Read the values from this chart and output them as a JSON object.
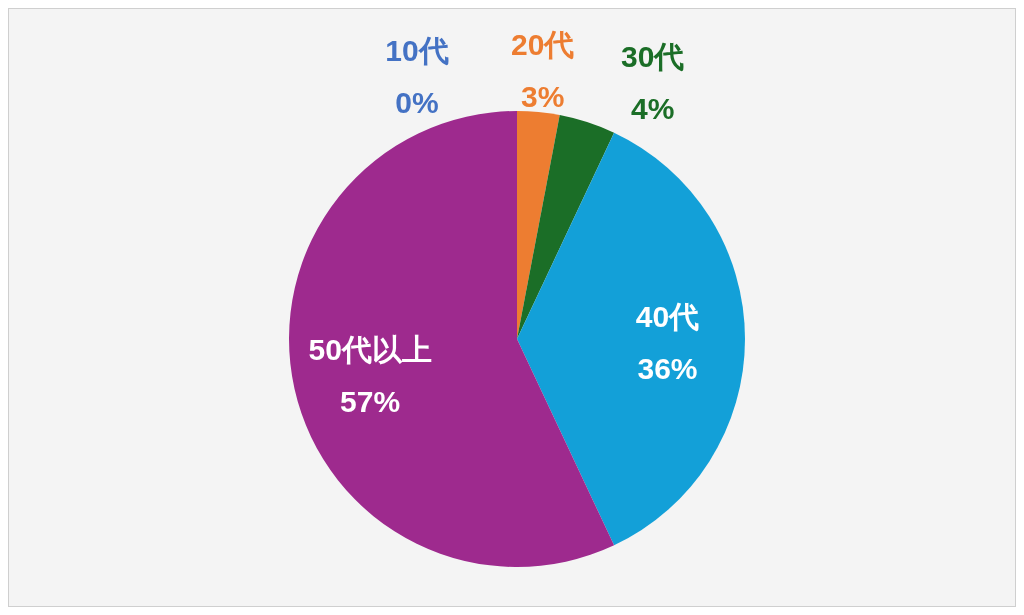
{
  "chart_data": {
    "type": "pie",
    "categories": [
      "10代",
      "20代",
      "30代",
      "40代",
      "50代以上"
    ],
    "values": [
      0,
      3,
      4,
      36,
      57
    ],
    "colors": [
      "#4472c4",
      "#ed7d31",
      "#1b6e27",
      "#13a0d8",
      "#9e2a8e"
    ],
    "value_labels": [
      "0%",
      "3%",
      "4%",
      "36%",
      "57%"
    ],
    "legend": false
  }
}
